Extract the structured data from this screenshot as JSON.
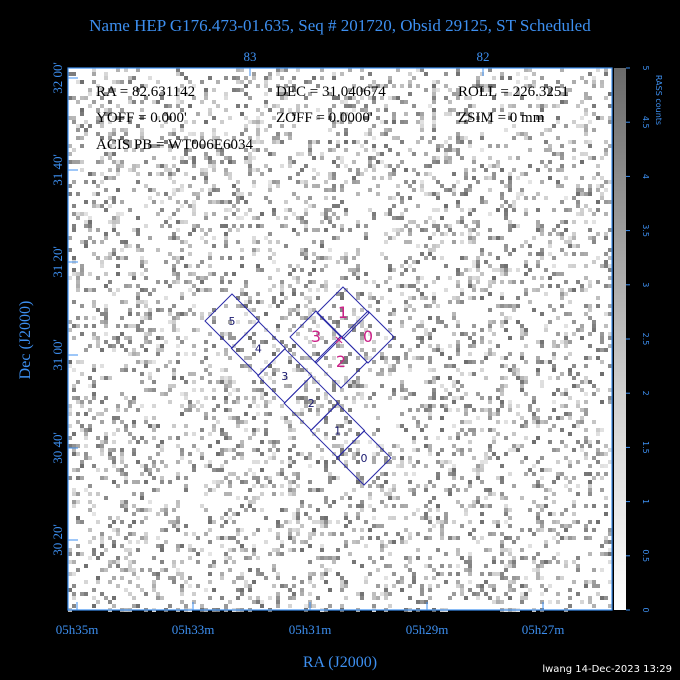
{
  "title": "Name HEP G176.473-01.635, Seq # 201720, Obsid 29125, ST Scheduled",
  "top_axis": {
    "ticks": [
      "83",
      "82"
    ]
  },
  "left_axis": {
    "label": "Dec (J2000)",
    "ticks": [
      "32 00'",
      "31 40'",
      "31 20'",
      "31 00'",
      "30 40'",
      "30 20'"
    ]
  },
  "bottom_axis": {
    "label": "RA (J2000)",
    "ticks": [
      "05h35m",
      "05h33m",
      "05h31m",
      "05h29m",
      "05h27m"
    ]
  },
  "colorbar": {
    "label": "RASS counts",
    "ticks": [
      "0",
      "0.5",
      "1",
      "1.5",
      "2",
      "2.5",
      "3",
      "3.5",
      "4",
      "4.5",
      "5"
    ]
  },
  "annotations": [
    "RA = 82.631142",
    "DEC = 31.040674",
    "ROLL = 226.3251",
    "YOFF =   0.000'",
    "ZOFF =  0.0000'",
    "ZSIM = 0 mm",
    "ACIS PB = WT006E6034"
  ],
  "acis_i": {
    "chips": [
      "1",
      "3",
      "0",
      "2"
    ]
  },
  "acis_s": {
    "chips": [
      "5",
      "4",
      "3",
      "2",
      "1",
      "0"
    ]
  },
  "footer": "lwang 14-Dec-2023 13:29"
}
